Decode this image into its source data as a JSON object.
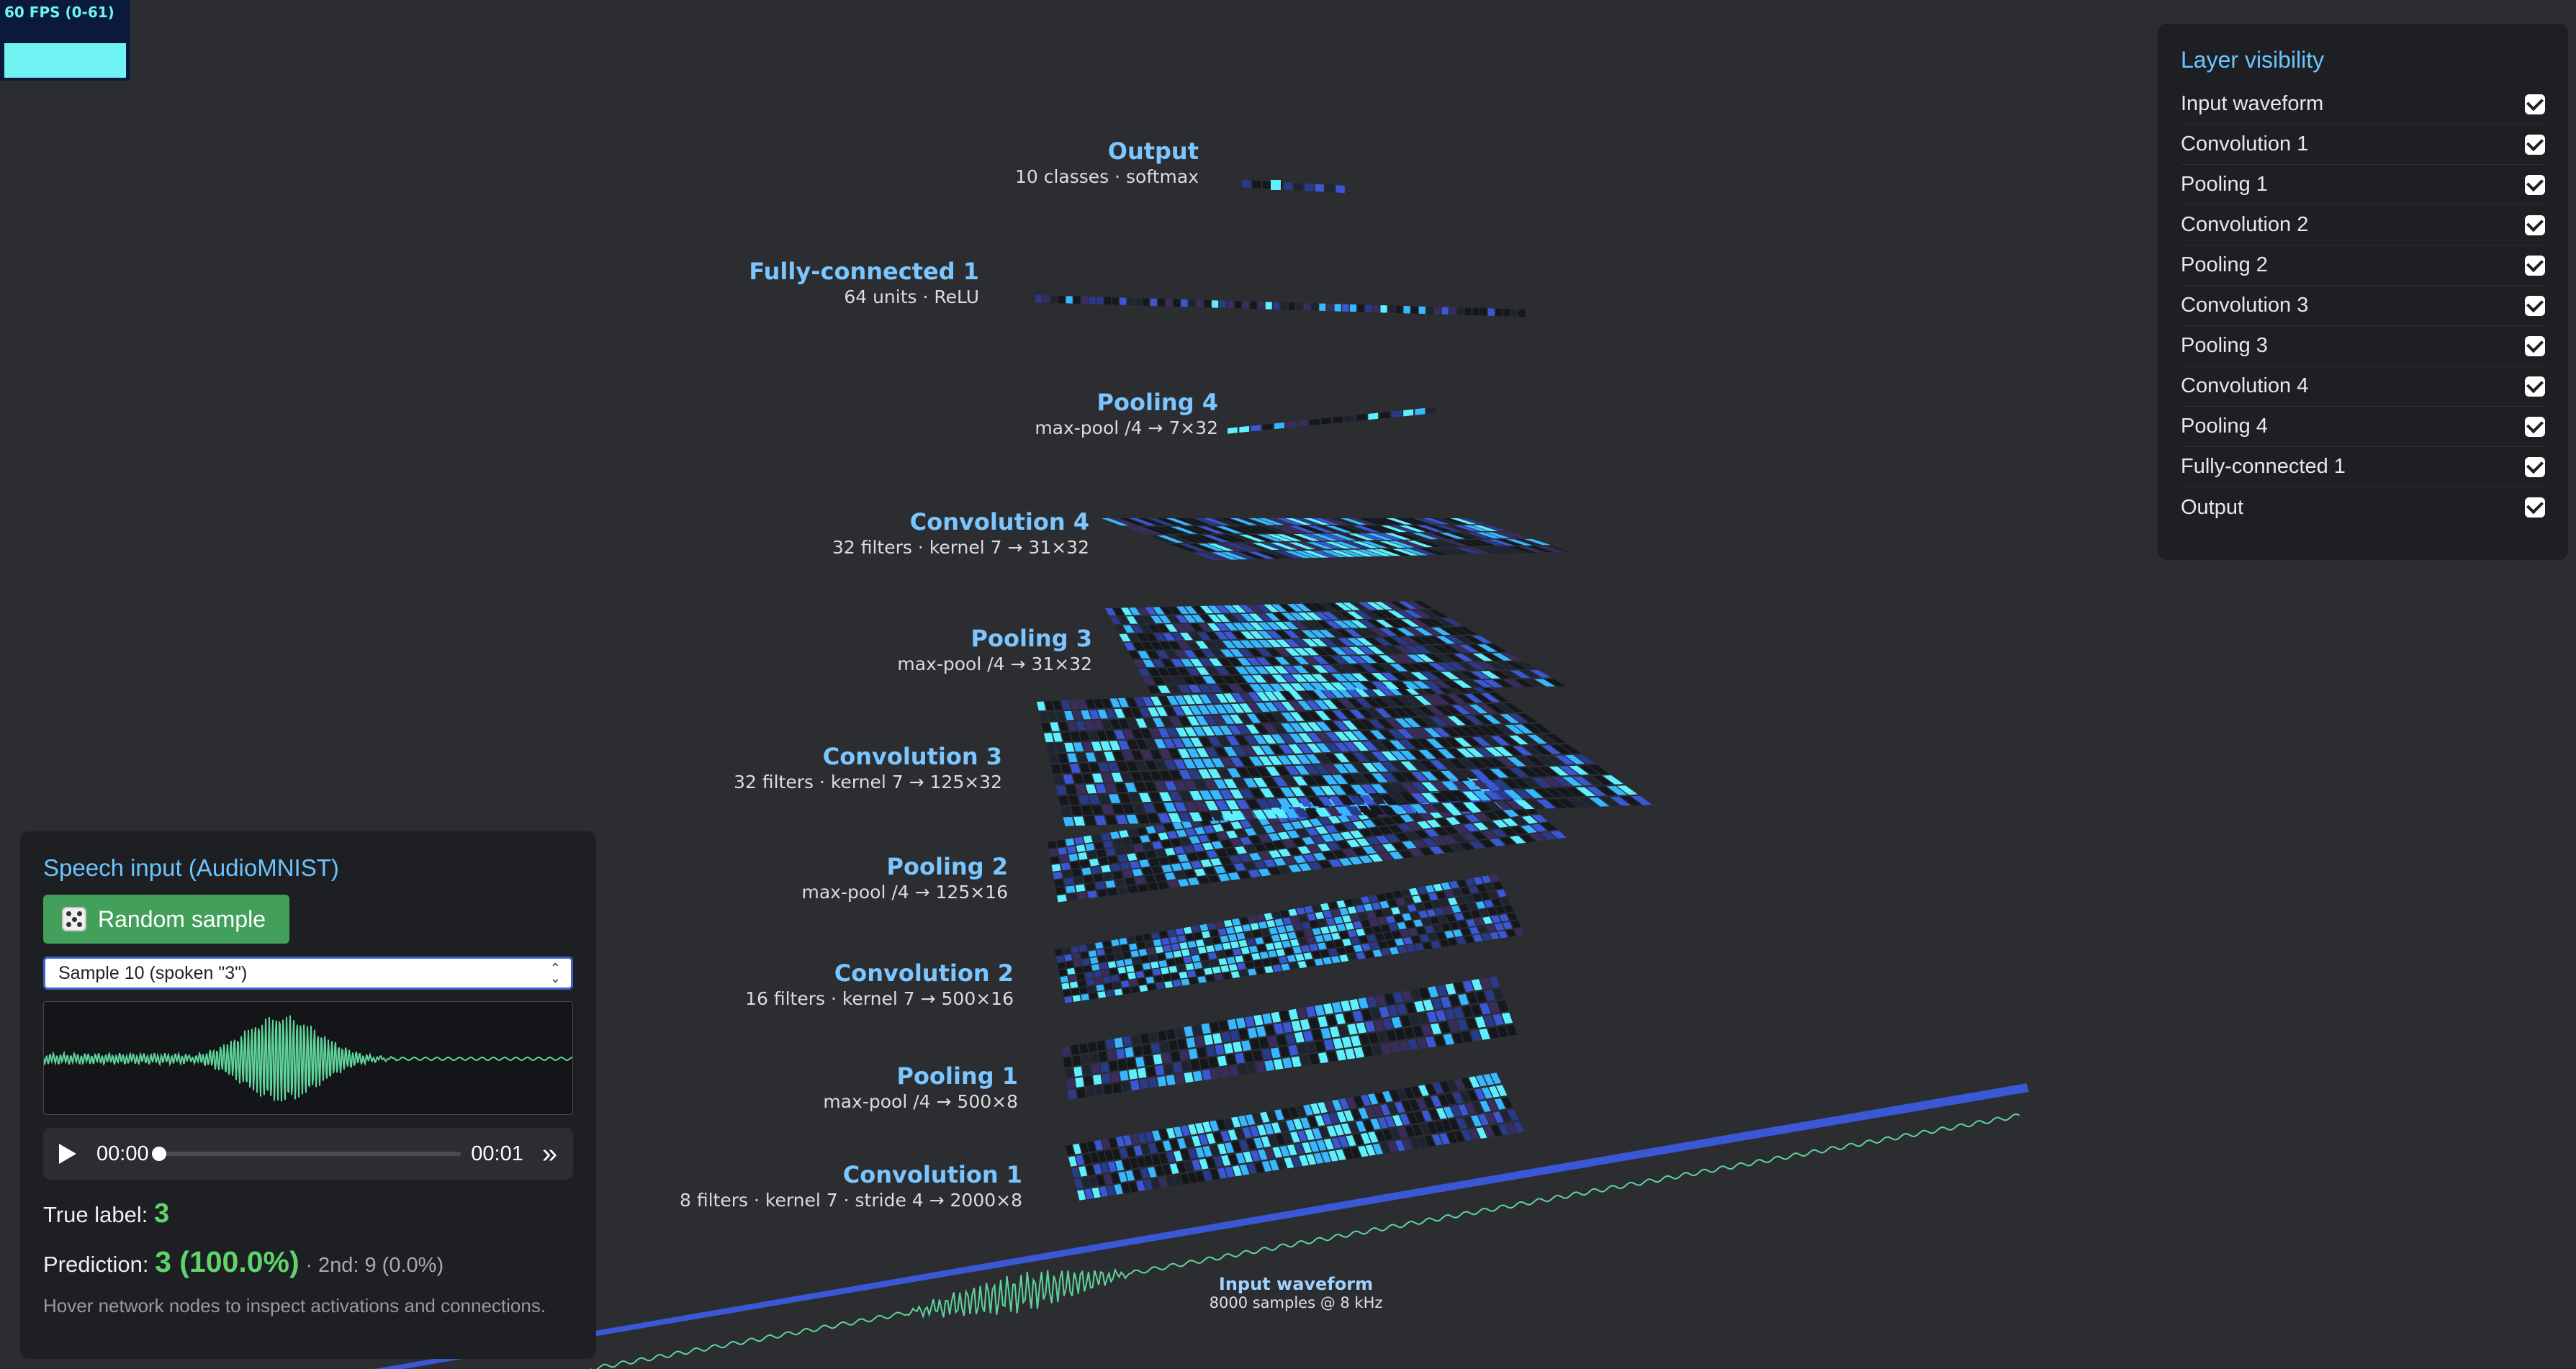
{
  "fps": {
    "text": "60 FPS (0-61)"
  },
  "layers": [
    {
      "key": "output",
      "title": "Output",
      "sub": "10 classes · softmax"
    },
    {
      "key": "fc1",
      "title": "Fully-connected 1",
      "sub": "64 units · ReLU"
    },
    {
      "key": "pool4",
      "title": "Pooling 4",
      "sub": "max-pool /4 → 7×32"
    },
    {
      "key": "conv4",
      "title": "Convolution 4",
      "sub": "32 filters · kernel 7 → 31×32"
    },
    {
      "key": "pool3",
      "title": "Pooling 3",
      "sub": "max-pool /4 → 31×32"
    },
    {
      "key": "conv3",
      "title": "Convolution 3",
      "sub": "32 filters · kernel 7 → 125×32"
    },
    {
      "key": "pool2",
      "title": "Pooling 2",
      "sub": "max-pool /4 → 125×16"
    },
    {
      "key": "conv2",
      "title": "Convolution 2",
      "sub": "16 filters · kernel 7 → 500×16"
    },
    {
      "key": "pool1",
      "title": "Pooling 1",
      "sub": "max-pool /4 → 500×8"
    },
    {
      "key": "conv1",
      "title": "Convolution 1",
      "sub": "8 filters · kernel 7 · stride 4 → 2000×8"
    }
  ],
  "input_wave": {
    "title": "Input waveform",
    "sub": "8000 samples @ 8 kHz"
  },
  "visibility": {
    "title": "Layer visibility",
    "items": [
      {
        "label": "Input waveform",
        "checked": true
      },
      {
        "label": "Convolution 1",
        "checked": true
      },
      {
        "label": "Pooling 1",
        "checked": true
      },
      {
        "label": "Convolution 2",
        "checked": true
      },
      {
        "label": "Pooling 2",
        "checked": true
      },
      {
        "label": "Convolution 3",
        "checked": true
      },
      {
        "label": "Pooling 3",
        "checked": true
      },
      {
        "label": "Convolution 4",
        "checked": true
      },
      {
        "label": "Pooling 4",
        "checked": true
      },
      {
        "label": "Fully-connected 1",
        "checked": true
      },
      {
        "label": "Output",
        "checked": true
      }
    ]
  },
  "speech": {
    "title": "Speech input (AudioMNIST)",
    "random_label": "Random sample",
    "selected_sample": "Sample 10 (spoken \"3\")",
    "audio": {
      "current": "00:00",
      "duration": "00:01",
      "progress": 0
    },
    "true_label_prefix": "True label:",
    "true_label_value": "3",
    "prediction_prefix": "Prediction:",
    "prediction_value": "3 (100.0%)",
    "second_text": "· 2nd: 9 (0.0%)",
    "hint": "Hover network nodes to inspect activations and connections."
  },
  "colors": {
    "background": "#2b2d31",
    "panel": "#1d1f23",
    "label_blue": "#7cc6ff",
    "accent_green": "#5fd46b",
    "button_green": "#43a05a",
    "activation_cyan": "#5ff0ff",
    "activation_blue": "#3a57d6",
    "waveform_green": "#5fd49a"
  }
}
